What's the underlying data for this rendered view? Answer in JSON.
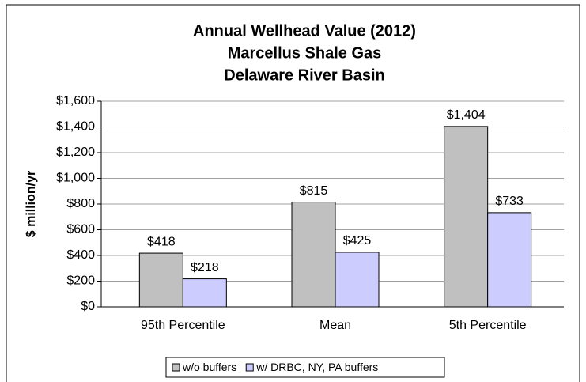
{
  "chart_data": {
    "type": "bar",
    "title": [
      "Annual Wellhead Value (2012)",
      "Marcellus Shale Gas",
      "Delaware River Basin"
    ],
    "y_label": "$ million/yr",
    "categories": [
      "95th Percentile",
      "Mean",
      "5th Percentile"
    ],
    "series": [
      {
        "name": "w/o buffers",
        "color": "#c0c0c0",
        "values": [
          418,
          815,
          1404
        ],
        "value_labels": [
          "$418",
          "$815",
          "$1,404"
        ]
      },
      {
        "name": "w/ DRBC, NY, PA buffers",
        "color": "#ccccff",
        "values": [
          218,
          425,
          733
        ],
        "value_labels": [
          "$218",
          "$425",
          "$733"
        ]
      }
    ],
    "ylim": [
      0,
      1600
    ],
    "yticks": [
      {
        "value": 0,
        "label": "$0"
      },
      {
        "value": 200,
        "label": "$200"
      },
      {
        "value": 400,
        "label": "$400"
      },
      {
        "value": 600,
        "label": "$600"
      },
      {
        "value": 800,
        "label": "$800"
      },
      {
        "value": 1000,
        "label": "$1,000"
      },
      {
        "value": 1200,
        "label": "$1,200"
      },
      {
        "value": 1400,
        "label": "$1,400"
      },
      {
        "value": 1600,
        "label": "$1,600"
      }
    ],
    "grid": true,
    "legend": "bottom"
  }
}
